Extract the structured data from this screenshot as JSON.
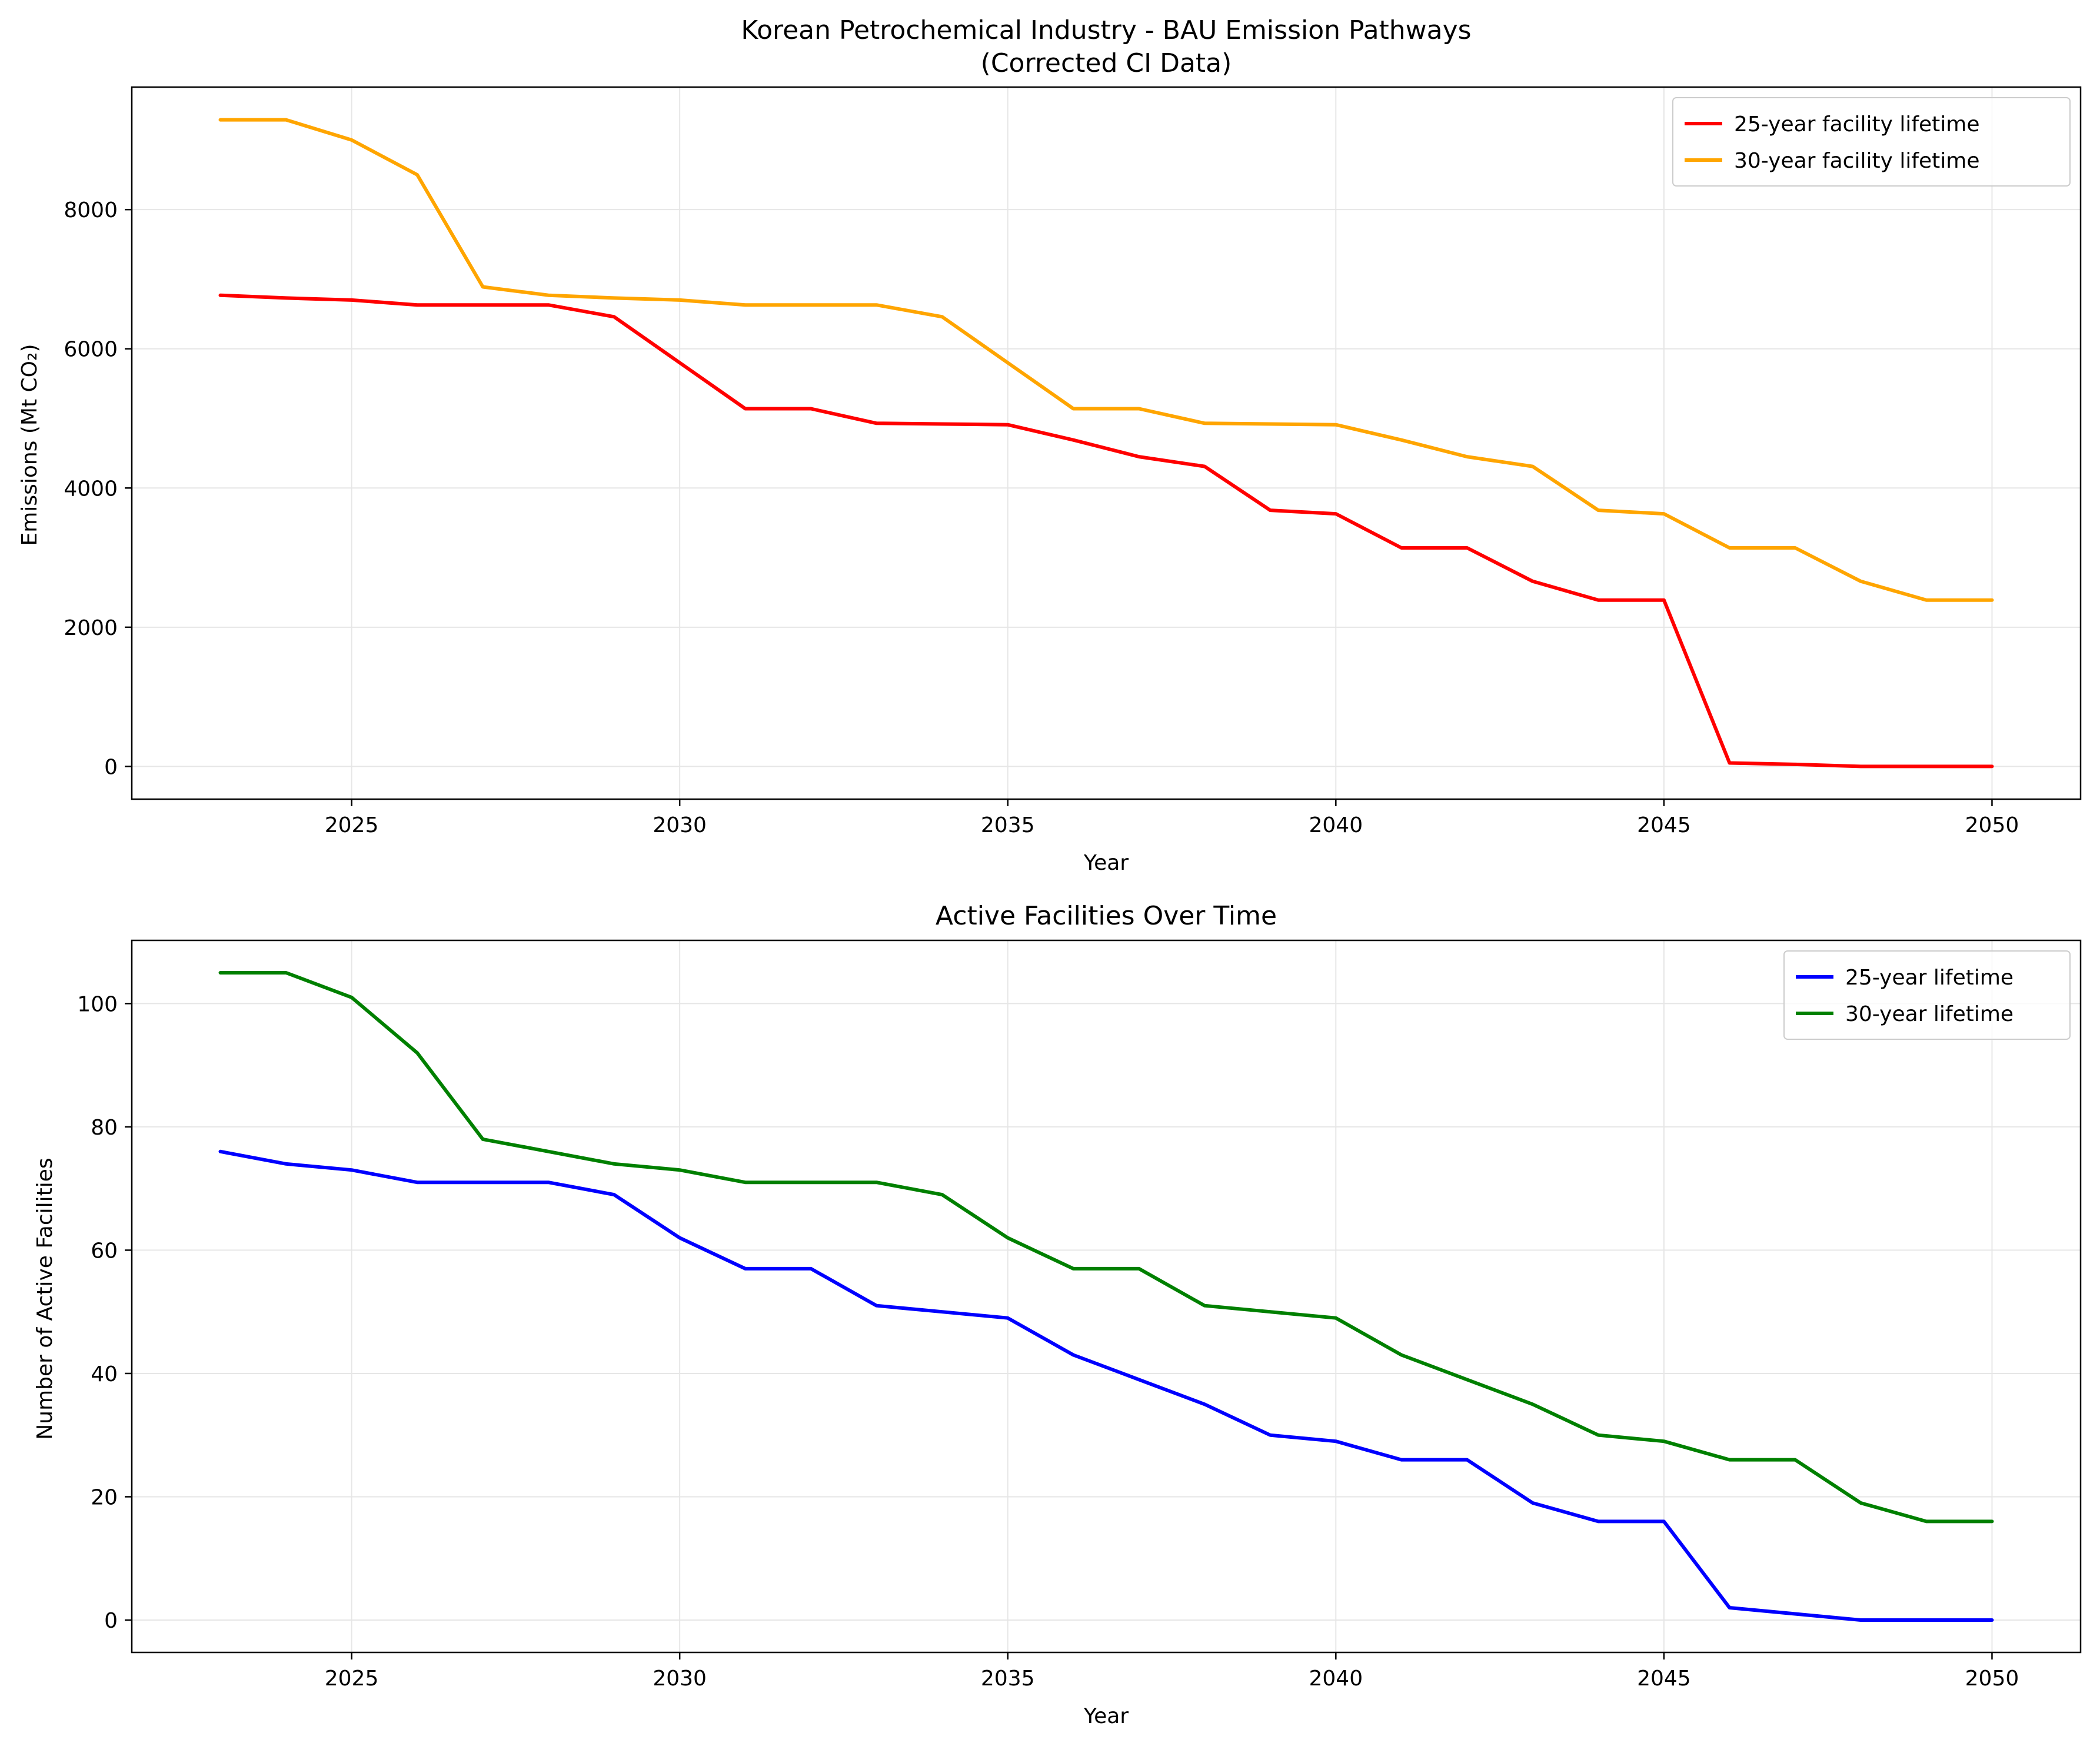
{
  "chart_data": [
    {
      "type": "line",
      "title": "Korean Petrochemical Industry - BAU Emission Pathways",
      "subtitle": "(Corrected CI Data)",
      "xlabel": "Year",
      "ylabel": "Emissions (Mt CO₂)",
      "xlim": [
        2021.65,
        2051.35
      ],
      "ylim": [
        -470,
        9760
      ],
      "xticks": [
        2025,
        2030,
        2035,
        2040,
        2045,
        2050
      ],
      "yticks": [
        0,
        2000,
        4000,
        6000,
        8000
      ],
      "grid": true,
      "legend_position": "top-right",
      "x": [
        2023,
        2024,
        2025,
        2026,
        2027,
        2028,
        2029,
        2030,
        2031,
        2032,
        2033,
        2034,
        2035,
        2036,
        2037,
        2038,
        2039,
        2040,
        2041,
        2042,
        2043,
        2044,
        2045,
        2046,
        2047,
        2048,
        2049,
        2050
      ],
      "series": [
        {
          "name": "25-year facility lifetime",
          "color": "#ff0000",
          "values": [
            6770,
            6730,
            6700,
            6630,
            6630,
            6630,
            6460,
            5800,
            5140,
            5140,
            4930,
            4920,
            4910,
            4690,
            4450,
            4310,
            3680,
            3630,
            3140,
            3140,
            2660,
            2390,
            2390,
            50,
            30,
            0,
            0,
            0
          ]
        },
        {
          "name": "30-year facility lifetime",
          "color": "#ffa500",
          "values": [
            9290,
            9290,
            9000,
            8500,
            6890,
            6770,
            6730,
            6700,
            6630,
            6630,
            6630,
            6460,
            5800,
            5140,
            5140,
            4930,
            4920,
            4910,
            4690,
            4450,
            4310,
            3680,
            3630,
            3140,
            3140,
            2660,
            2390,
            2390
          ]
        }
      ]
    },
    {
      "type": "line",
      "title": "Active Facilities Over Time",
      "xlabel": "Year",
      "ylabel": "Number of Active Facilities",
      "xlim": [
        2021.65,
        2051.35
      ],
      "ylim": [
        -5.25,
        110.25
      ],
      "xticks": [
        2025,
        2030,
        2035,
        2040,
        2045,
        2050
      ],
      "yticks": [
        0,
        20,
        40,
        60,
        80,
        100
      ],
      "grid": true,
      "legend_position": "top-right",
      "x": [
        2023,
        2024,
        2025,
        2026,
        2027,
        2028,
        2029,
        2030,
        2031,
        2032,
        2033,
        2034,
        2035,
        2036,
        2037,
        2038,
        2039,
        2040,
        2041,
        2042,
        2043,
        2044,
        2045,
        2046,
        2047,
        2048,
        2049,
        2050
      ],
      "series": [
        {
          "name": "25-year lifetime",
          "color": "#0000ff",
          "values": [
            76,
            74,
            73,
            71,
            71,
            71,
            69,
            62,
            57,
            57,
            51,
            50,
            49,
            43,
            39,
            35,
            30,
            29,
            26,
            26,
            19,
            16,
            16,
            2,
            1,
            0,
            0,
            0
          ]
        },
        {
          "name": "30-year lifetime",
          "color": "#008000",
          "values": [
            105,
            105,
            101,
            92,
            78,
            76,
            74,
            73,
            71,
            71,
            71,
            69,
            62,
            57,
            57,
            51,
            50,
            49,
            43,
            39,
            35,
            30,
            29,
            26,
            26,
            19,
            16,
            16
          ]
        }
      ]
    }
  ]
}
